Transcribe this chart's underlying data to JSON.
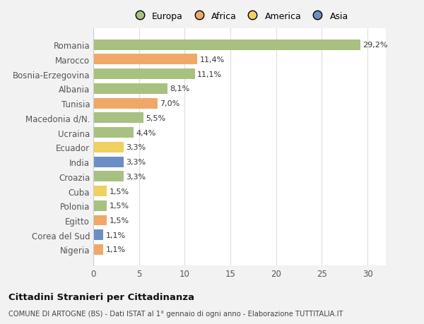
{
  "categories": [
    "Nigeria",
    "Corea del Sud",
    "Egitto",
    "Polonia",
    "Cuba",
    "Croazia",
    "India",
    "Ecuador",
    "Ucraina",
    "Macedonia d/N.",
    "Tunisia",
    "Albania",
    "Bosnia-Erzegovina",
    "Marocco",
    "Romania"
  ],
  "values": [
    1.1,
    1.1,
    1.5,
    1.5,
    1.5,
    3.3,
    3.3,
    3.3,
    4.4,
    5.5,
    7.0,
    8.1,
    11.1,
    11.4,
    29.2
  ],
  "colors": [
    "#f0a868",
    "#6b8fc4",
    "#f0a868",
    "#a8c080",
    "#f0d060",
    "#a8c080",
    "#6b8fc4",
    "#f0d060",
    "#a8c080",
    "#a8c080",
    "#f0a868",
    "#a8c080",
    "#a8c080",
    "#f0a868",
    "#a8c080"
  ],
  "labels": [
    "1,1%",
    "1,1%",
    "1,5%",
    "1,5%",
    "1,5%",
    "3,3%",
    "3,3%",
    "3,3%",
    "4,4%",
    "5,5%",
    "7,0%",
    "8,1%",
    "11,1%",
    "11,4%",
    "29,2%"
  ],
  "legend_labels": [
    "Europa",
    "Africa",
    "America",
    "Asia"
  ],
  "legend_colors": [
    "#a8c080",
    "#f0a868",
    "#f0d060",
    "#6b8fc4"
  ],
  "title": "Cittadini Stranieri per Cittadinanza",
  "subtitle": "COMUNE DI ARTOGNE (BS) - Dati ISTAT al 1° gennaio di ogni anno - Elaborazione TUTTITALIA.IT",
  "xlim": [
    0,
    32
  ],
  "xticks": [
    0,
    5,
    10,
    15,
    20,
    25,
    30
  ],
  "bg_color": "#f2f2f2",
  "plot_bg_color": "#ffffff",
  "grid_color": "#dddddd",
  "bar_height": 0.72
}
